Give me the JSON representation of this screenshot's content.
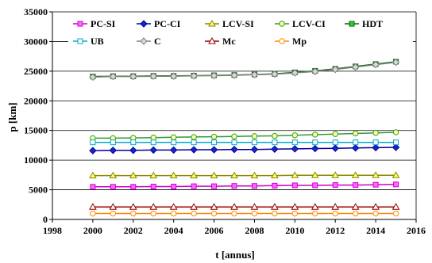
{
  "chart_data": {
    "type": "line",
    "xlabel": "t [annus]",
    "ylabel": "p [km]",
    "xlim": [
      1998,
      2016
    ],
    "ylim": [
      0,
      35000
    ],
    "xticks": [
      1998,
      2000,
      2002,
      2004,
      2006,
      2008,
      2010,
      2012,
      2014,
      2016
    ],
    "yticks": [
      0,
      5000,
      10000,
      15000,
      20000,
      25000,
      30000,
      35000
    ],
    "grid": true,
    "legend_position": "top",
    "x": [
      2000,
      2001,
      2002,
      2003,
      2004,
      2005,
      2006,
      2007,
      2008,
      2009,
      2010,
      2011,
      2012,
      2013,
      2014,
      2015
    ],
    "series": [
      {
        "name": "PC-SI",
        "color": "#cc00cc",
        "marker": "square",
        "markerFill": "#ff66ff",
        "values": [
          5500,
          5500,
          5500,
          5550,
          5550,
          5600,
          5600,
          5650,
          5650,
          5700,
          5750,
          5750,
          5800,
          5800,
          5850,
          5900
        ]
      },
      {
        "name": "PC-CI",
        "color": "#000099",
        "marker": "diamond",
        "markerFill": "#2222cc",
        "values": [
          11600,
          11650,
          11650,
          11700,
          11700,
          11750,
          11750,
          11800,
          11800,
          11850,
          11900,
          11950,
          12000,
          12050,
          12100,
          12150
        ]
      },
      {
        "name": "LCV-SI",
        "color": "#888800",
        "marker": "triangle",
        "markerFill": "#ffff66",
        "values": [
          7400,
          7400,
          7400,
          7400,
          7400,
          7400,
          7400,
          7400,
          7400,
          7400,
          7450,
          7450,
          7450,
          7450,
          7450,
          7450
        ]
      },
      {
        "name": "LCV-CI",
        "color": "#339933",
        "marker": "circle",
        "markerFill": "#ffff99",
        "values": [
          13700,
          13700,
          13750,
          13800,
          13850,
          13900,
          13950,
          14000,
          14050,
          14100,
          14200,
          14300,
          14400,
          14500,
          14600,
          14700
        ]
      },
      {
        "name": "HDT",
        "color": "#006600",
        "marker": "square",
        "markerFill": "#33cc33",
        "values": [
          24100,
          24150,
          24150,
          24200,
          24200,
          24250,
          24300,
          24350,
          24450,
          24550,
          24800,
          25050,
          25400,
          25800,
          26200,
          26600
        ]
      },
      {
        "name": "UB",
        "color": "#00aacc",
        "marker": "square",
        "markerFill": "#ffffff",
        "values": [
          13000,
          13000,
          13000,
          13000,
          13000,
          13000,
          13000,
          13000,
          13000,
          13000,
          13000,
          13000,
          13000,
          13000,
          13000,
          13000
        ]
      },
      {
        "name": "C",
        "color": "#808080",
        "marker": "diamond",
        "markerFill": "#d8d8d8",
        "values": [
          24000,
          24100,
          24100,
          24150,
          24150,
          24200,
          24250,
          24300,
          24400,
          24500,
          24700,
          24950,
          25300,
          25700,
          26100,
          26500
        ]
      },
      {
        "name": "Mc",
        "color": "#990000",
        "marker": "triangle",
        "markerFill": "#ffffff",
        "values": [
          2100,
          2100,
          2100,
          2100,
          2100,
          2100,
          2100,
          2100,
          2100,
          2100,
          2100,
          2100,
          2100,
          2100,
          2100,
          2100
        ]
      },
      {
        "name": "Mp",
        "color": "#ff8800",
        "marker": "circle",
        "markerFill": "#ffffff",
        "values": [
          1000,
          1000,
          1000,
          1000,
          1000,
          1000,
          1000,
          1000,
          1000,
          1000,
          1000,
          1000,
          1000,
          1000,
          1000,
          1000
        ]
      }
    ]
  }
}
